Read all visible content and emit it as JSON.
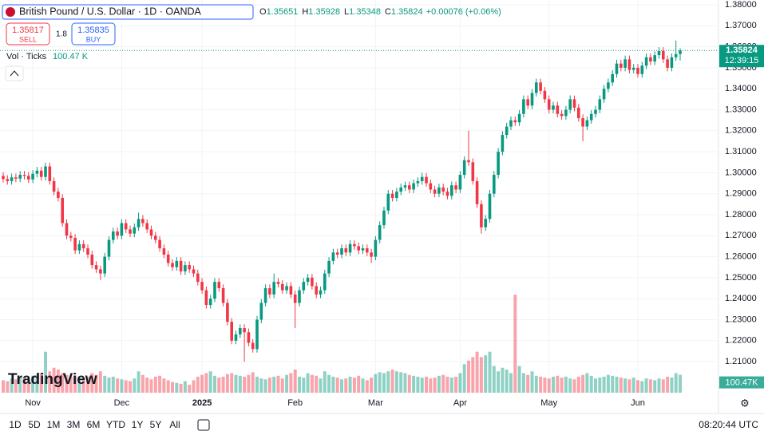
{
  "header": {
    "symbol": "British Pound / U.S. Dollar · 1D · OANDA",
    "ohlc_letters": [
      "O",
      "H",
      "L",
      "C"
    ],
    "change_label": "+0.00076 (+0.06%)",
    "sell_price": "1.35817",
    "sell": "SELL",
    "spread": "1.8",
    "buy_price": "1.35835",
    "buy": "BUY",
    "vol_title": "Vol · Ticks",
    "vol_legend": "100.47 K",
    "vol_axis": "100.47K",
    "countdown": "12:39:15",
    "logo": "TradingView"
  },
  "toolbar": {
    "ranges": [
      "1D",
      "5D",
      "1M",
      "3M",
      "6M",
      "YTD",
      "1Y",
      "5Y",
      "All"
    ],
    "clock": "08:20:44 UTC"
  },
  "chart_data": {
    "type": "candlestick",
    "up_color": "#089981",
    "down_color": "#f23645",
    "grid": true,
    "ylim": [
      1.19521,
      1.38228
    ],
    "yticks": [
      {
        "value": 1.38,
        "label": "1.38000"
      },
      {
        "value": 1.37,
        "label": "1.37000"
      },
      {
        "value": 1.36,
        "label": "1.36000"
      },
      {
        "value": 1.35,
        "label": "1.35000"
      },
      {
        "value": 1.34,
        "label": "1.34000"
      },
      {
        "value": 1.33,
        "label": "1.33000"
      },
      {
        "value": 1.32,
        "label": "1.32000"
      },
      {
        "value": 1.31,
        "label": "1.31000"
      },
      {
        "value": 1.3,
        "label": "1.30000"
      },
      {
        "value": 1.29,
        "label": "1.29000"
      },
      {
        "value": 1.28,
        "label": "1.28000"
      },
      {
        "value": 1.27,
        "label": "1.27000"
      },
      {
        "value": 1.26,
        "label": "1.26000"
      },
      {
        "value": 1.25,
        "label": "1.25000"
      },
      {
        "value": 1.24,
        "label": "1.24000"
      },
      {
        "value": 1.23,
        "label": "1.23000"
      },
      {
        "value": 1.22,
        "label": "1.22000"
      },
      {
        "value": 1.21,
        "label": "1.21000"
      }
    ],
    "xticks": [
      {
        "value": 7,
        "label": "Nov"
      },
      {
        "value": 28,
        "label": "Dec"
      },
      {
        "value": 47,
        "label": "2025"
      },
      {
        "value": 69,
        "label": "Feb"
      },
      {
        "value": 88,
        "label": "Mar"
      },
      {
        "value": 108,
        "label": "Apr"
      },
      {
        "value": 129,
        "label": "May"
      },
      {
        "value": 150,
        "label": "Jun"
      }
    ],
    "vlim": [
      0,
      560
    ],
    "open": [
      1.2985,
      1.297,
      1.296,
      1.2978,
      1.2972,
      1.299,
      1.2985,
      1.2968,
      1.2995,
      1.301,
      1.298,
      1.303,
      1.296,
      1.291,
      1.288,
      1.276,
      1.27,
      1.269,
      1.263,
      1.266,
      1.264,
      1.261,
      1.256,
      1.254,
      1.252,
      1.26,
      1.268,
      1.272,
      1.27,
      1.276,
      1.273,
      1.271,
      1.274,
      1.278,
      1.276,
      1.273,
      1.27,
      1.268,
      1.264,
      1.261,
      1.257,
      1.255,
      1.258,
      1.253,
      1.256,
      1.254,
      1.252,
      1.248,
      1.244,
      1.237,
      1.24,
      1.248,
      1.245,
      1.238,
      1.229,
      1.22,
      1.223,
      1.226,
      1.224,
      1.219,
      1.216,
      1.23,
      1.238,
      1.245,
      1.242,
      1.248,
      1.247,
      1.244,
      1.246,
      1.242,
      1.238,
      1.244,
      1.248,
      1.25,
      1.246,
      1.242,
      1.244,
      1.252,
      1.258,
      1.262,
      1.261,
      1.264,
      1.262,
      1.266,
      1.265,
      1.263,
      1.264,
      1.262,
      1.26,
      1.268,
      1.275,
      1.282,
      1.29,
      1.288,
      1.291,
      1.293,
      1.294,
      1.292,
      1.295,
      1.296,
      1.298,
      1.295,
      1.292,
      1.29,
      1.293,
      1.291,
      1.289,
      1.294,
      1.292,
      1.299,
      1.306,
      1.305,
      1.296,
      1.285,
      1.274,
      1.278,
      1.29,
      1.299,
      1.31,
      1.318,
      1.322,
      1.325,
      1.324,
      1.328,
      1.335,
      1.332,
      1.338,
      1.343,
      1.339,
      1.335,
      1.33,
      1.332,
      1.328,
      1.327,
      1.33,
      1.335,
      1.331,
      1.326,
      1.322,
      1.325,
      1.328,
      1.33,
      1.335,
      1.34,
      1.343,
      1.347,
      1.352,
      1.35,
      1.354,
      1.349,
      1.35,
      1.347,
      1.351,
      1.355,
      1.353,
      1.356,
      1.358,
      1.354,
      1.35,
      1.355,
      1.35651
    ],
    "high": [
      1.3003,
      1.2988,
      1.2996,
      1.2996,
      1.3008,
      1.3008,
      1.3003,
      1.3013,
      1.3028,
      1.3028,
      1.3048,
      1.3048,
      1.2978,
      1.2928,
      1.2898,
      1.2778,
      1.2718,
      1.2708,
      1.2678,
      1.2678,
      1.2658,
      1.2628,
      1.2578,
      1.2558,
      1.2618,
      1.2698,
      1.2738,
      1.2738,
      1.2778,
      1.2778,
      1.2748,
      1.2758,
      1.281,
      1.2798,
      1.2778,
      1.2748,
      1.2718,
      1.2698,
      1.2658,
      1.2628,
      1.2588,
      1.2598,
      1.2598,
      1.2578,
      1.2578,
      1.2558,
      1.2538,
      1.2498,
      1.2458,
      1.2418,
      1.2498,
      1.2498,
      1.2468,
      1.2398,
      1.2308,
      1.2248,
      1.2278,
      1.2278,
      1.2258,
      1.2208,
      1.2318,
      1.2398,
      1.2468,
      1.2468,
      1.252,
      1.2498,
      1.2488,
      1.2478,
      1.2478,
      1.2438,
      1.2458,
      1.2498,
      1.2518,
      1.2518,
      1.2478,
      1.2458,
      1.2538,
      1.2598,
      1.2638,
      1.2638,
      1.2658,
      1.2658,
      1.2678,
      1.2678,
      1.2668,
      1.2658,
      1.2658,
      1.2638,
      1.2698,
      1.2768,
      1.2838,
      1.2918,
      1.2918,
      1.2928,
      1.2948,
      1.2958,
      1.2958,
      1.2968,
      1.2978,
      1.3,
      1.2998,
      1.2968,
      1.2938,
      1.2948,
      1.2948,
      1.2928,
      1.2958,
      1.2958,
      1.3008,
      1.3078,
      1.32,
      1.3068,
      1.2978,
      1.2868,
      1.2798,
      1.2918,
      1.3008,
      1.3118,
      1.3198,
      1.3238,
      1.3268,
      1.3268,
      1.3298,
      1.3368,
      1.3368,
      1.3398,
      1.3448,
      1.3448,
      1.3408,
      1.3368,
      1.3338,
      1.3338,
      1.3298,
      1.3318,
      1.3368,
      1.3368,
      1.3328,
      1.3278,
      1.3268,
      1.3298,
      1.3318,
      1.3368,
      1.3418,
      1.3448,
      1.3488,
      1.3538,
      1.3538,
      1.3558,
      1.3558,
      1.3518,
      1.3518,
      1.3528,
      1.3568,
      1.3568,
      1.3578,
      1.3598,
      1.3598,
      1.3558,
      1.3568,
      1.363,
      1.35928
    ],
    "low": [
      1.2953,
      1.2943,
      1.2943,
      1.2955,
      1.2955,
      1.2968,
      1.2951,
      1.2951,
      1.2978,
      1.2963,
      1.2963,
      1.2943,
      1.2893,
      1.2863,
      1.2743,
      1.2683,
      1.2673,
      1.2613,
      1.2613,
      1.2623,
      1.2593,
      1.2543,
      1.2523,
      1.249,
      1.2503,
      1.2583,
      1.2663,
      1.2683,
      1.2683,
      1.2713,
      1.2693,
      1.2693,
      1.2723,
      1.2743,
      1.2713,
      1.2683,
      1.2663,
      1.2623,
      1.2593,
      1.2553,
      1.2533,
      1.2533,
      1.2513,
      1.2513,
      1.2523,
      1.2503,
      1.2463,
      1.2423,
      1.2353,
      1.2353,
      1.2383,
      1.2433,
      1.2363,
      1.2273,
      1.2183,
      1.2183,
      1.2213,
      1.21,
      1.2173,
      1.2143,
      1.2143,
      1.2283,
      1.2363,
      1.2403,
      1.2403,
      1.2453,
      1.2423,
      1.2423,
      1.2403,
      1.226,
      1.2363,
      1.2423,
      1.2463,
      1.2443,
      1.2403,
      1.2403,
      1.2423,
      1.2503,
      1.2563,
      1.2593,
      1.2593,
      1.2603,
      1.2603,
      1.2633,
      1.2613,
      1.2613,
      1.2603,
      1.257,
      1.2583,
      1.2663,
      1.2733,
      1.2803,
      1.2863,
      1.2863,
      1.2893,
      1.2913,
      1.2903,
      1.2903,
      1.2933,
      1.2943,
      1.2933,
      1.2903,
      1.2883,
      1.2883,
      1.2893,
      1.2873,
      1.2873,
      1.2903,
      1.2903,
      1.2973,
      1.3033,
      1.2943,
      1.2833,
      1.271,
      1.2723,
      1.2763,
      1.2883,
      1.2973,
      1.3083,
      1.3163,
      1.3203,
      1.3223,
      1.3223,
      1.3263,
      1.3303,
      1.3303,
      1.3363,
      1.3373,
      1.3333,
      1.3283,
      1.3283,
      1.3263,
      1.3253,
      1.3253,
      1.3283,
      1.3293,
      1.3243,
      1.315,
      1.3203,
      1.3233,
      1.3263,
      1.3283,
      1.3333,
      1.3383,
      1.3413,
      1.3453,
      1.3483,
      1.3483,
      1.3473,
      1.3473,
      1.3453,
      1.3453,
      1.3493,
      1.3513,
      1.3513,
      1.3543,
      1.3523,
      1.3483,
      1.3483,
      1.3533,
      1.35348
    ],
    "close": [
      1.297,
      1.296,
      1.2978,
      1.2972,
      1.299,
      1.2985,
      1.2968,
      1.2995,
      1.301,
      1.298,
      1.303,
      1.296,
      1.291,
      1.288,
      1.276,
      1.27,
      1.269,
      1.263,
      1.266,
      1.264,
      1.261,
      1.256,
      1.254,
      1.252,
      1.26,
      1.268,
      1.272,
      1.27,
      1.276,
      1.273,
      1.271,
      1.274,
      1.278,
      1.276,
      1.273,
      1.27,
      1.268,
      1.264,
      1.261,
      1.257,
      1.255,
      1.258,
      1.253,
      1.256,
      1.254,
      1.252,
      1.248,
      1.244,
      1.237,
      1.24,
      1.248,
      1.245,
      1.238,
      1.229,
      1.22,
      1.223,
      1.226,
      1.224,
      1.219,
      1.216,
      1.23,
      1.238,
      1.245,
      1.242,
      1.248,
      1.247,
      1.244,
      1.246,
      1.242,
      1.238,
      1.244,
      1.248,
      1.25,
      1.246,
      1.242,
      1.244,
      1.252,
      1.258,
      1.262,
      1.261,
      1.264,
      1.262,
      1.266,
      1.265,
      1.263,
      1.264,
      1.262,
      1.26,
      1.268,
      1.275,
      1.282,
      1.29,
      1.288,
      1.291,
      1.293,
      1.294,
      1.292,
      1.295,
      1.296,
      1.298,
      1.295,
      1.292,
      1.29,
      1.293,
      1.291,
      1.289,
      1.294,
      1.292,
      1.299,
      1.306,
      1.305,
      1.296,
      1.285,
      1.274,
      1.278,
      1.29,
      1.299,
      1.31,
      1.318,
      1.322,
      1.325,
      1.324,
      1.328,
      1.335,
      1.332,
      1.338,
      1.343,
      1.339,
      1.335,
      1.33,
      1.332,
      1.328,
      1.327,
      1.33,
      1.335,
      1.331,
      1.326,
      1.322,
      1.325,
      1.328,
      1.33,
      1.335,
      1.34,
      1.343,
      1.347,
      1.352,
      1.35,
      1.354,
      1.349,
      1.35,
      1.347,
      1.351,
      1.355,
      1.353,
      1.356,
      1.358,
      1.354,
      1.35,
      1.355,
      1.3565,
      1.35824
    ],
    "volume": [
      70,
      65,
      80,
      75,
      90,
      85,
      70,
      95,
      100,
      110,
      230,
      120,
      140,
      130,
      110,
      100,
      90,
      95,
      85,
      80,
      90,
      110,
      100,
      120,
      95,
      85,
      90,
      80,
      75,
      70,
      65,
      80,
      120,
      100,
      85,
      75,
      90,
      95,
      80,
      70,
      60,
      55,
      50,
      65,
      45,
      70,
      90,
      100,
      110,
      120,
      95,
      85,
      90,
      105,
      110,
      100,
      95,
      90,
      100,
      115,
      90,
      80,
      75,
      85,
      90,
      95,
      80,
      100,
      110,
      130,
      90,
      85,
      110,
      100,
      95,
      80,
      120,
      100,
      90,
      85,
      75,
      80,
      90,
      85,
      95,
      80,
      70,
      85,
      105,
      115,
      110,
      120,
      130,
      120,
      115,
      110,
      100,
      95,
      90,
      85,
      90,
      80,
      85,
      95,
      100,
      90,
      85,
      90,
      110,
      160,
      180,
      200,
      230,
      200,
      210,
      230,
      150,
      120,
      140,
      130,
      110,
      550,
      150,
      110,
      100,
      120,
      95,
      90,
      85,
      80,
      90,
      95,
      85,
      90,
      80,
      75,
      90,
      100,
      110,
      95,
      80,
      85,
      90,
      100,
      95,
      90,
      85,
      80,
      75,
      85,
      70,
      65,
      80,
      75,
      70,
      80,
      75,
      90,
      85,
      110,
      100.47
    ]
  }
}
